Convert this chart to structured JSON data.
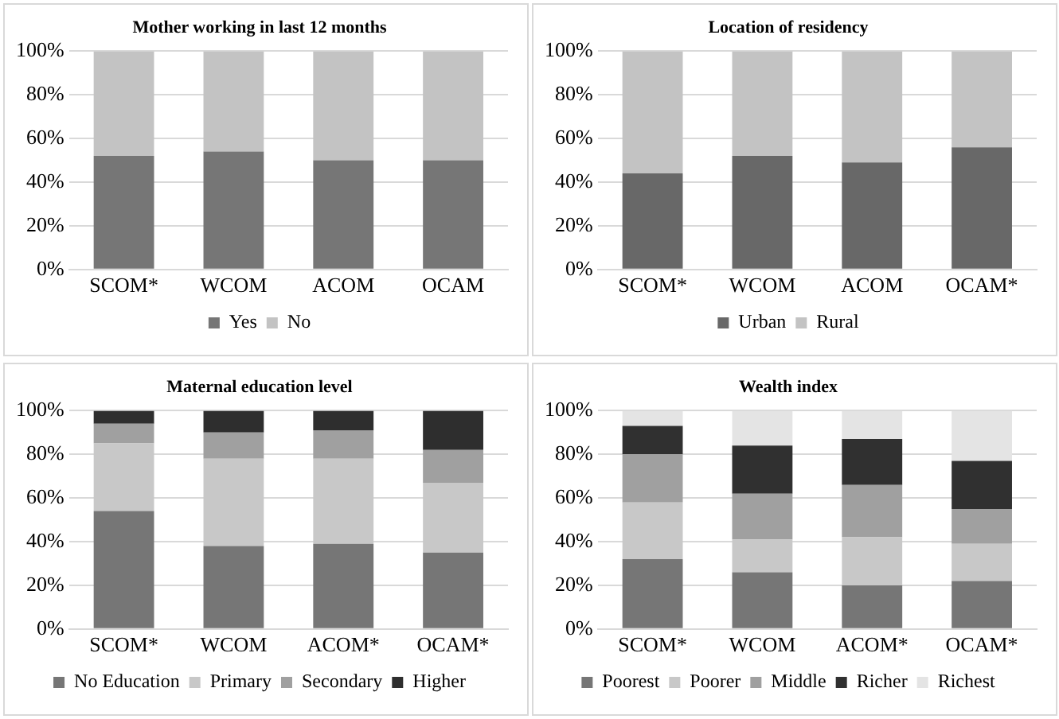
{
  "chart_data": [
    {
      "type": "bar",
      "title": "Mother working in last 12 months",
      "categories": [
        "SCOM*",
        "WCOM",
        "ACOM",
        "OCAM"
      ],
      "stacked": true,
      "ylim": [
        0,
        100
      ],
      "yticks": [
        {
          "value": 0,
          "label": "0%"
        },
        {
          "value": 20,
          "label": "20%"
        },
        {
          "value": 40,
          "label": "40%"
        },
        {
          "value": 60,
          "label": "60%"
        },
        {
          "value": 80,
          "label": "80%"
        },
        {
          "value": 100,
          "label": "100%"
        }
      ],
      "grid": "y",
      "legend": "bottom",
      "series": [
        {
          "name": "Yes",
          "color": "#767676",
          "values": [
            52,
            54,
            50,
            50
          ]
        },
        {
          "name": "No",
          "color": "#c3c3c3",
          "values": [
            48,
            46,
            50,
            50
          ]
        }
      ]
    },
    {
      "type": "bar",
      "title": "Location of residency",
      "categories": [
        "SCOM*",
        "WCOM",
        "ACOM",
        "OCAM*"
      ],
      "stacked": true,
      "ylim": [
        0,
        100
      ],
      "yticks": [
        {
          "value": 0,
          "label": "0%"
        },
        {
          "value": 20,
          "label": "20%"
        },
        {
          "value": 40,
          "label": "40%"
        },
        {
          "value": 60,
          "label": "60%"
        },
        {
          "value": 80,
          "label": "80%"
        },
        {
          "value": 100,
          "label": "100%"
        }
      ],
      "grid": "y",
      "legend": "bottom",
      "series": [
        {
          "name": "Urban",
          "color": "#686868",
          "values": [
            44,
            52,
            49,
            56
          ]
        },
        {
          "name": "Rural",
          "color": "#c3c3c3",
          "values": [
            56,
            48,
            51,
            44
          ]
        }
      ]
    },
    {
      "type": "bar",
      "title": "Maternal education level",
      "categories": [
        "SCOM*",
        "WCOM",
        "ACOM*",
        "OCAM*"
      ],
      "stacked": true,
      "ylim": [
        0,
        100
      ],
      "yticks": [
        {
          "value": 0,
          "label": "0%"
        },
        {
          "value": 20,
          "label": "20%"
        },
        {
          "value": 40,
          "label": "40%"
        },
        {
          "value": 60,
          "label": "60%"
        },
        {
          "value": 80,
          "label": "80%"
        },
        {
          "value": 100,
          "label": "100%"
        }
      ],
      "grid": "y",
      "legend": "bottom",
      "series": [
        {
          "name": "No Education",
          "color": "#767676",
          "values": [
            54,
            38,
            39,
            35
          ]
        },
        {
          "name": "Primary",
          "color": "#c8c8c8",
          "values": [
            31,
            40,
            39,
            32
          ]
        },
        {
          "name": "Secondary",
          "color": "#a0a0a0",
          "values": [
            9,
            12,
            13,
            15
          ]
        },
        {
          "name": "Higher",
          "color": "#2e2e2e",
          "values": [
            6,
            10,
            9,
            18
          ]
        }
      ]
    },
    {
      "type": "bar",
      "title": "Wealth index",
      "categories": [
        "SCOM*",
        "WCOM",
        "ACOM*",
        "OCAM*"
      ],
      "stacked": true,
      "ylim": [
        0,
        100
      ],
      "yticks": [
        {
          "value": 0,
          "label": "0%"
        },
        {
          "value": 20,
          "label": "20%"
        },
        {
          "value": 40,
          "label": "40%"
        },
        {
          "value": 60,
          "label": "60%"
        },
        {
          "value": 80,
          "label": "80%"
        },
        {
          "value": 100,
          "label": "100%"
        }
      ],
      "grid": "y",
      "legend": "bottom",
      "series": [
        {
          "name": "Poorest",
          "color": "#767676",
          "values": [
            32,
            26,
            20,
            22
          ]
        },
        {
          "name": "Poorer",
          "color": "#c8c8c8",
          "values": [
            26,
            15,
            22,
            17
          ]
        },
        {
          "name": "Middle",
          "color": "#a0a0a0",
          "values": [
            22,
            21,
            24,
            16
          ]
        },
        {
          "name": "Richer",
          "color": "#303030",
          "values": [
            13,
            22,
            21,
            22
          ]
        },
        {
          "name": "Richest",
          "color": "#e4e4e4",
          "values": [
            7,
            16,
            13,
            23
          ]
        }
      ]
    }
  ]
}
